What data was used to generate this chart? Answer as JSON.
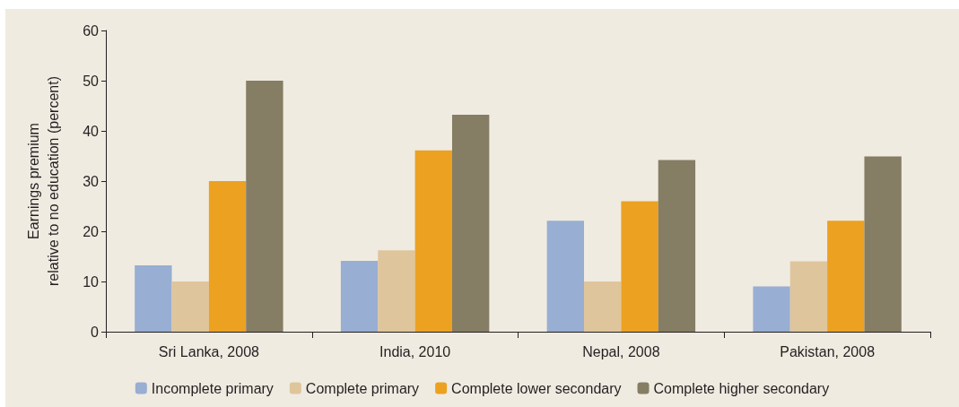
{
  "chart_data": {
    "type": "bar",
    "ylabel": "Earnings premium\nrelative to no education (percent)",
    "categories": [
      "Sri Lanka, 2008",
      "India, 2010",
      "Nepal, 2008",
      "Pakistan, 2008"
    ],
    "series": [
      {
        "name": "Incomplete primary",
        "color": "#98aed2",
        "values": [
          13.2,
          14.1,
          22.1,
          9.0
        ]
      },
      {
        "name": "Complete primary",
        "color": "#dfc59c",
        "values": [
          10.0,
          16.2,
          10.0,
          14.0
        ]
      },
      {
        "name": "Complete lower secondary",
        "color": "#eca121",
        "values": [
          30.0,
          36.1,
          26.0,
          22.1
        ]
      },
      {
        "name": "Complete higher secondary",
        "color": "#857d64",
        "values": [
          50.0,
          43.2,
          34.2,
          34.9
        ]
      }
    ],
    "ylim": [
      0,
      60
    ],
    "yticks": [
      0,
      10,
      20,
      30,
      40,
      50,
      60
    ],
    "grid": false,
    "legend": "bottom"
  }
}
